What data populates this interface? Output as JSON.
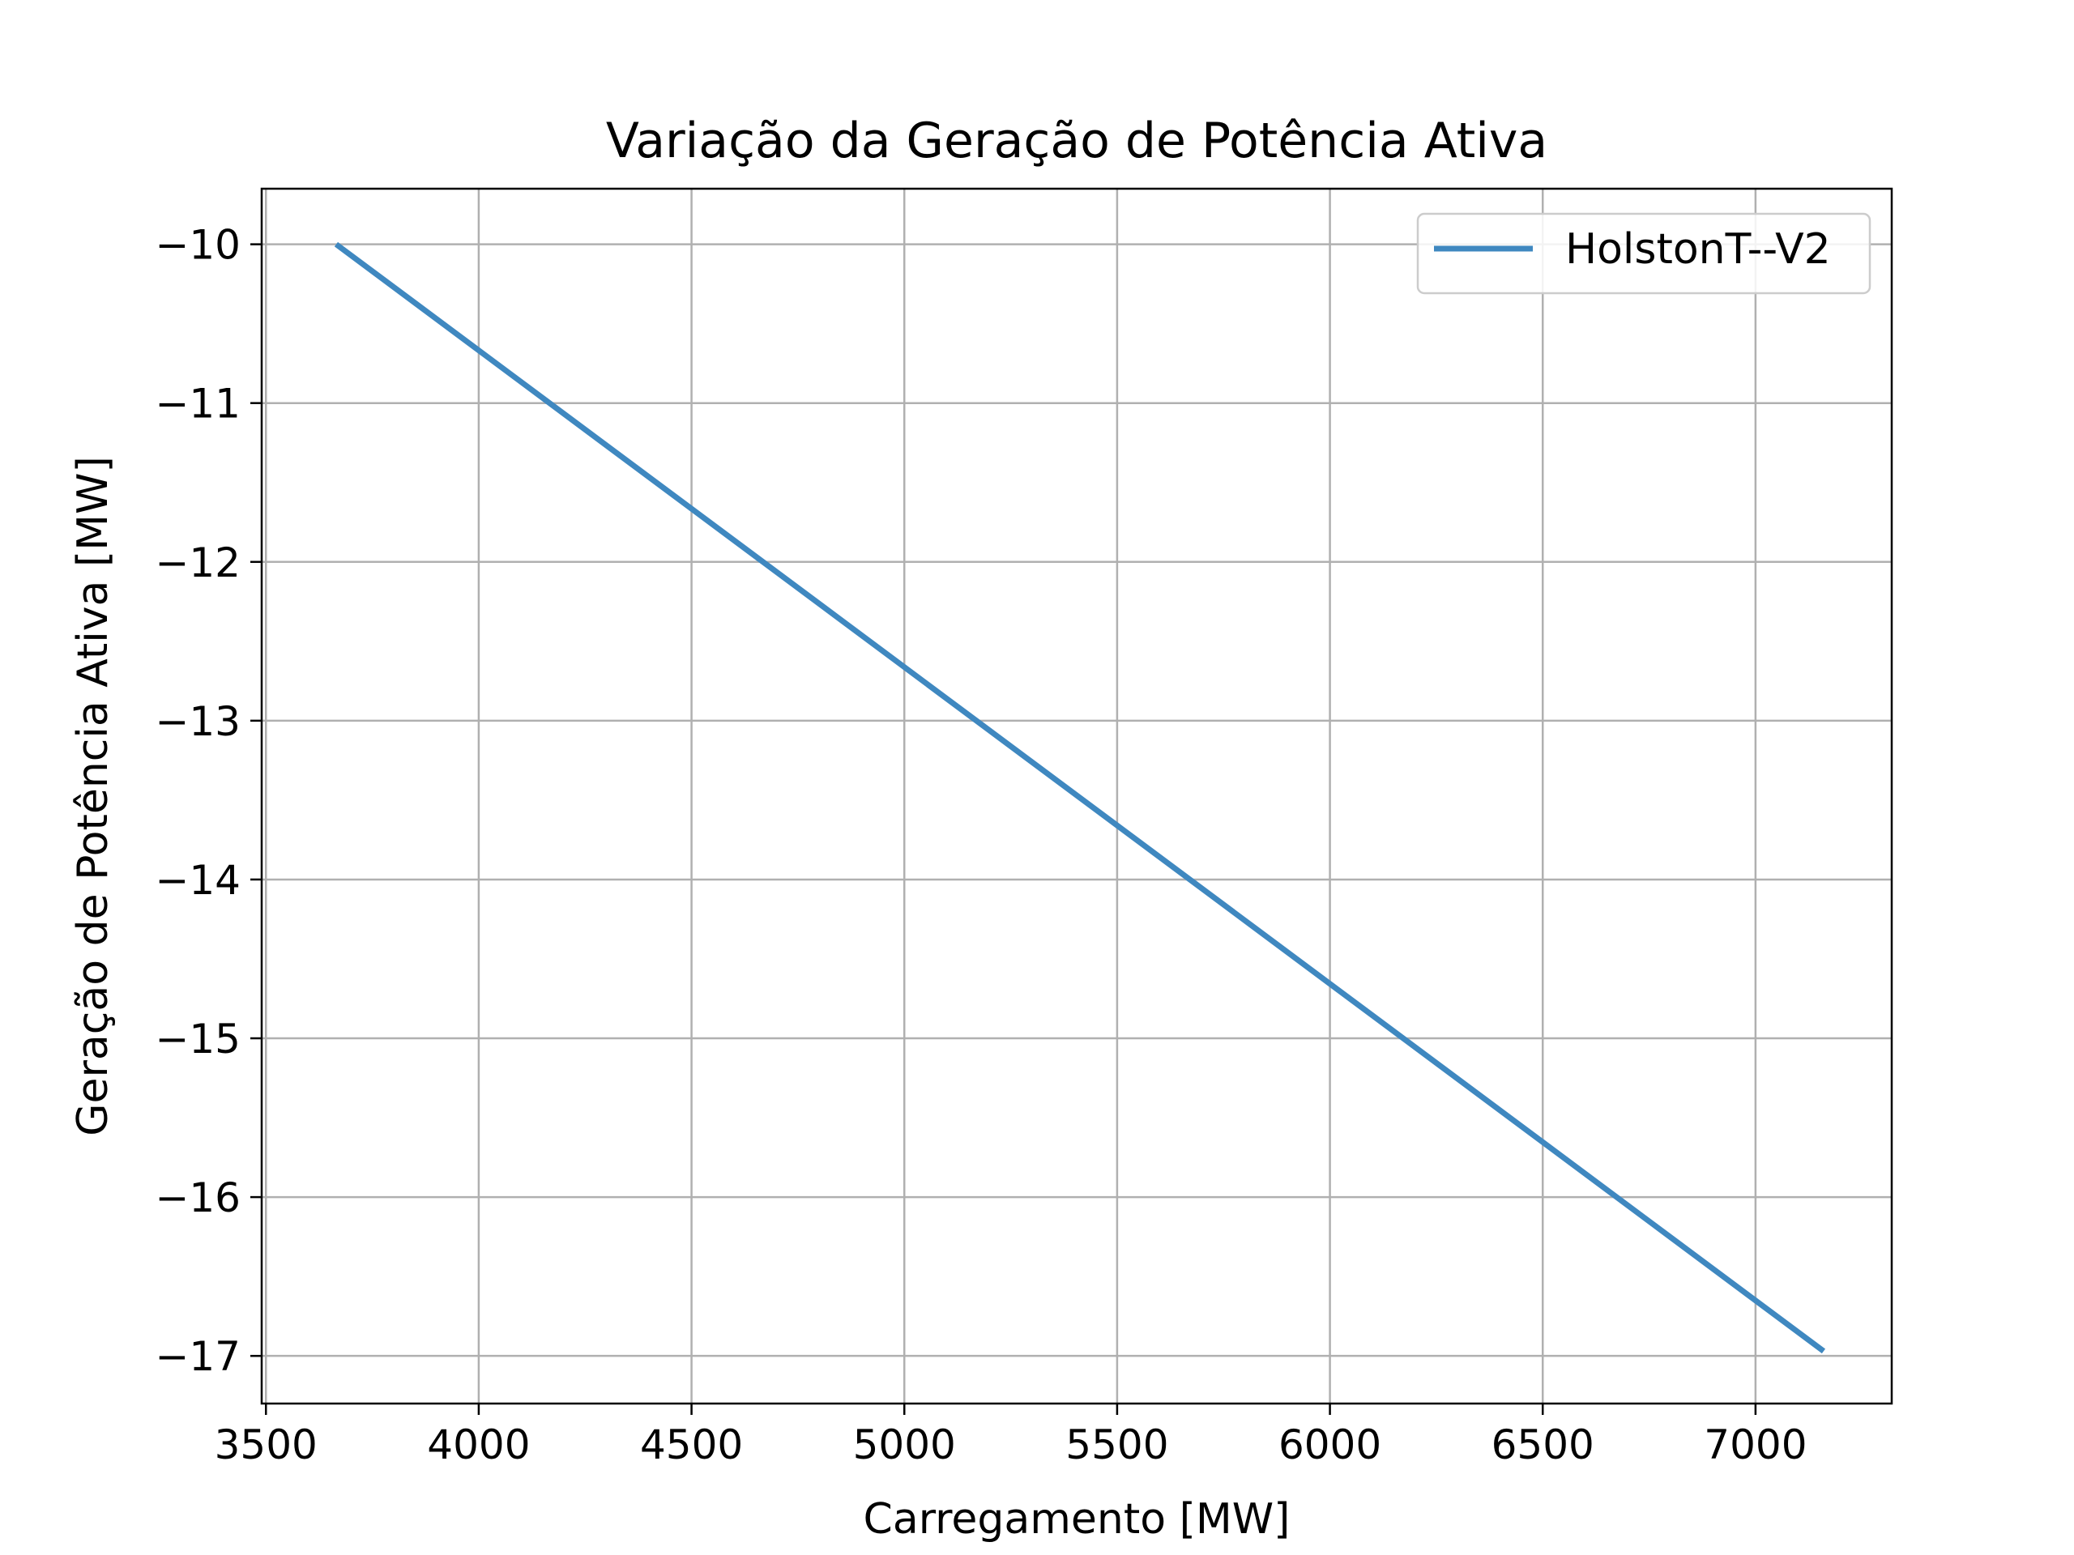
{
  "chart_data": {
    "type": "line",
    "title": "Variação da Geração de Potência Ativa",
    "xlabel": "Carregamento [MW]",
    "ylabel": "Geração de Potência Ativa [MW]",
    "xlim": [
      3490,
      7320
    ],
    "ylim": [
      -17.3,
      -9.65
    ],
    "xticks": [
      3500,
      4000,
      4500,
      5000,
      5500,
      6000,
      6500,
      7000
    ],
    "xtick_labels": [
      "3500",
      "4000",
      "4500",
      "5000",
      "5500",
      "6000",
      "6500",
      "7000"
    ],
    "yticks": [
      -10,
      -11,
      -12,
      -13,
      -14,
      -15,
      -16,
      -17
    ],
    "ytick_labels": [
      "−10",
      "−11",
      "−12",
      "−13",
      "−14",
      "−15",
      "−16",
      "−17"
    ],
    "grid": true,
    "legend_position": "top-right",
    "series": [
      {
        "name": "HolstonT--V2",
        "color": "#3f88c0",
        "x": [
          3665,
          7160
        ],
        "y": [
          -10.0,
          -16.97
        ]
      }
    ]
  }
}
